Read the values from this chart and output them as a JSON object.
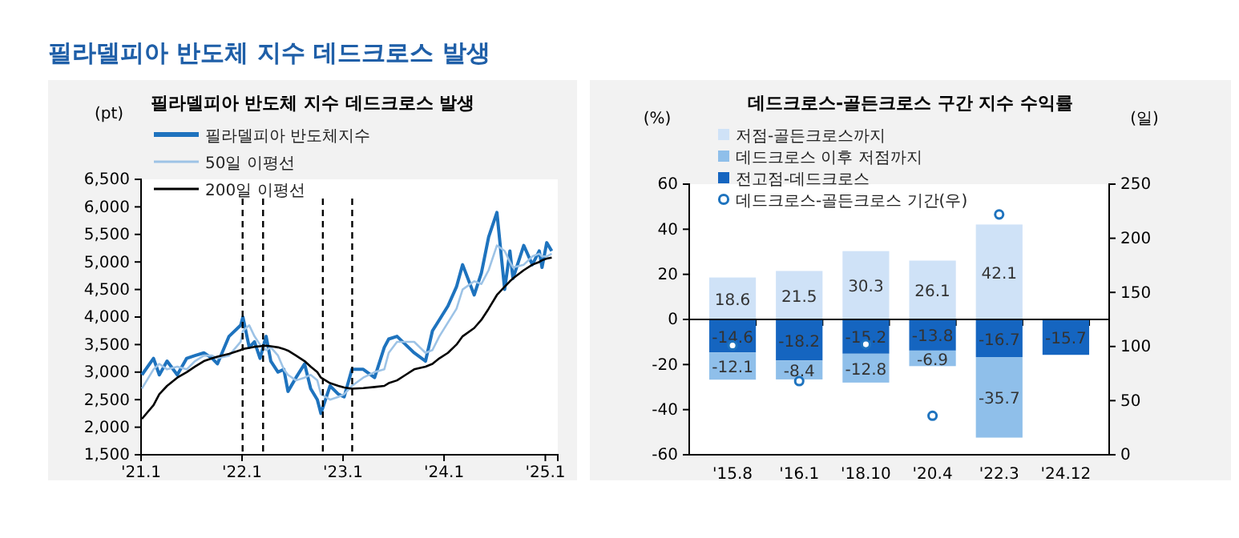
{
  "chart_data": [
    {
      "type": "line",
      "title": "필라델피아 반도체 지수 데드크로스 발생",
      "subtitle": "필라델피아 반도체 지수 데드크로스 발생",
      "ylabel": "(pt)",
      "x": [
        "2021-01-04",
        "2021-02-15",
        "2021-03-08",
        "2021-04-05",
        "2021-05-12",
        "2021-06-15",
        "2021-07-15",
        "2021-08-16",
        "2021-09-15",
        "2021-10-04",
        "2021-11-15",
        "2021-12-27",
        "2022-01-04",
        "2022-01-27",
        "2022-02-15",
        "2022-03-07",
        "2022-03-29",
        "2022-04-15",
        "2022-05-11",
        "2022-06-01",
        "2022-06-16",
        "2022-07-15",
        "2022-08-15",
        "2022-09-06",
        "2022-09-30",
        "2022-10-13",
        "2022-11-15",
        "2022-12-15",
        "2023-01-05",
        "2023-02-02",
        "2023-03-15",
        "2023-04-25",
        "2023-05-30",
        "2023-06-15",
        "2023-07-15",
        "2023-08-15",
        "2023-09-15",
        "2023-10-26",
        "2023-11-20",
        "2023-12-15",
        "2024-01-15",
        "2024-02-15",
        "2024-03-08",
        "2024-04-19",
        "2024-05-15",
        "2024-06-10",
        "2024-07-10",
        "2024-08-07",
        "2024-08-26",
        "2024-09-06",
        "2024-10-15",
        "2024-11-15",
        "2024-12-10",
        "2024-12-20",
        "2025-01-06",
        "2025-01-24"
      ],
      "series": [
        {
          "name": "필라델피아 반도체지수",
          "color": "#1e73be",
          "values": [
            2950,
            3250,
            2950,
            3200,
            2950,
            3250,
            3300,
            3350,
            3250,
            3150,
            3650,
            3850,
            4000,
            3450,
            3550,
            3250,
            3650,
            3200,
            3000,
            3050,
            2650,
            2900,
            3150,
            2700,
            2500,
            2250,
            2750,
            2600,
            2550,
            3050,
            3050,
            2900,
            3450,
            3600,
            3650,
            3500,
            3350,
            3200,
            3750,
            3950,
            4200,
            4550,
            4950,
            4400,
            4800,
            5450,
            5900,
            4500,
            5200,
            4700,
            5300,
            4950,
            5200,
            4900,
            5350,
            5200
          ]
        },
        {
          "name": "50일 이평선",
          "color": "#9dc3e6",
          "values": [
            2700,
            3050,
            3150,
            3050,
            3100,
            3050,
            3200,
            3300,
            3300,
            3250,
            3300,
            3550,
            3750,
            3850,
            3650,
            3500,
            3400,
            3450,
            3300,
            3050,
            2950,
            2850,
            2900,
            2950,
            2850,
            2600,
            2500,
            2550,
            2600,
            2750,
            2900,
            3000,
            3050,
            3350,
            3550,
            3550,
            3550,
            3350,
            3400,
            3650,
            3900,
            4150,
            4500,
            4650,
            4600,
            4850,
            5300,
            5200,
            5000,
            4900,
            4950,
            5100,
            5150,
            5100,
            5100,
            5150
          ]
        },
        {
          "name": "200일 이평선",
          "color": "#000000",
          "values": [
            2150,
            2400,
            2600,
            2750,
            2900,
            3000,
            3100,
            3200,
            3250,
            3280,
            3330,
            3400,
            3420,
            3440,
            3460,
            3470,
            3480,
            3470,
            3450,
            3420,
            3390,
            3300,
            3200,
            3100,
            3000,
            2900,
            2800,
            2750,
            2720,
            2700,
            2710,
            2730,
            2750,
            2800,
            2850,
            2950,
            3050,
            3100,
            3150,
            3250,
            3350,
            3500,
            3650,
            3800,
            3950,
            4150,
            4400,
            4550,
            4650,
            4700,
            4850,
            4950,
            5000,
            5030,
            5060,
            5080
          ]
        }
      ],
      "xlim": [
        "2021-01-01",
        "2025-02-15"
      ],
      "xticks": [
        {
          "value": "2021-01-01",
          "label": "'21.1"
        },
        {
          "value": "2022-01-01",
          "label": "'22.1"
        },
        {
          "value": "2023-01-01",
          "label": "'23.1"
        },
        {
          "value": "2024-01-01",
          "label": "'24.1"
        },
        {
          "value": "2025-01-01",
          "label": "'25.1"
        }
      ],
      "ylim": [
        1500,
        6500
      ],
      "yticks": [
        {
          "value": 1500,
          "label": "1,500"
        },
        {
          "value": 2000,
          "label": "2,000"
        },
        {
          "value": 2500,
          "label": "2,500"
        },
        {
          "value": 3000,
          "label": "3,000"
        },
        {
          "value": 3500,
          "label": "3,500"
        },
        {
          "value": 4000,
          "label": "4,000"
        },
        {
          "value": 4500,
          "label": "4,500"
        },
        {
          "value": 5000,
          "label": "5,000"
        },
        {
          "value": 5500,
          "label": "5,500"
        },
        {
          "value": 6000,
          "label": "6,000"
        },
        {
          "value": 6500,
          "label": "6,500"
        }
      ],
      "ref_lines": [
        {
          "axis": "x",
          "value": "2022-01-03",
          "color": "#000000",
          "line_style": "dashed"
        },
        {
          "axis": "x",
          "value": "2022-03-18",
          "color": "#000000",
          "line_style": "dashed"
        },
        {
          "axis": "x",
          "value": "2022-10-20",
          "color": "#000000",
          "line_style": "dashed"
        },
        {
          "axis": "x",
          "value": "2023-02-03",
          "color": "#000000",
          "line_style": "dashed"
        }
      ],
      "legend": "top left",
      "grid": false
    },
    {
      "type": "bar",
      "title": "데드크로스-골든크로스 구간 지수 수익률",
      "ylabel": "(%)",
      "y2label": "(일)",
      "stacked": true,
      "categories": [
        "'15.8",
        "'16.1",
        "'18.10",
        "'20.4",
        "'22.3",
        "'24.12"
      ],
      "series": [
        {
          "name": "전고점-데드크로스",
          "color": "#1565c0",
          "values": [
            -14.6,
            -18.2,
            -15.2,
            -13.8,
            -16.7,
            -15.7
          ],
          "value_labels": [
            "-14.6",
            "-18.2",
            "-15.2",
            "-13.8",
            "-16.7",
            "-15.7"
          ]
        },
        {
          "name": "데드크로스 이후 저점까지",
          "color": "#8fbfea",
          "values": [
            -12.1,
            -8.4,
            -12.8,
            -6.9,
            -35.7,
            null
          ],
          "value_labels": [
            "-12.1",
            "-8.4",
            "-12.8",
            "-6.9",
            "-35.7",
            null
          ]
        },
        {
          "name": "저점-골든크로스까지",
          "color": "#cfe2f7",
          "values": [
            18.6,
            21.5,
            30.3,
            26.1,
            42.1,
            null
          ],
          "value_labels": [
            "18.6",
            "21.5",
            "30.3",
            "26.1",
            "42.1",
            null
          ]
        },
        {
          "name": "데드크로스-골든크로스 기간(우)",
          "type": "scatter",
          "axis": "y2",
          "color": "#1e73be",
          "marker": "circle",
          "values": [
            101,
            68,
            102,
            36,
            222,
            null
          ]
        }
      ],
      "ylim": [
        -60,
        60
      ],
      "yticks": [
        -60,
        -40,
        -20,
        0,
        20,
        40,
        60
      ],
      "y2lim": [
        0,
        250
      ],
      "y2ticks": [
        0,
        50,
        100,
        150,
        200,
        250
      ],
      "ref_lines": [
        {
          "axis": "y",
          "value": 0,
          "color": "#000000"
        }
      ],
      "legend": "top left",
      "grid": false
    }
  ]
}
